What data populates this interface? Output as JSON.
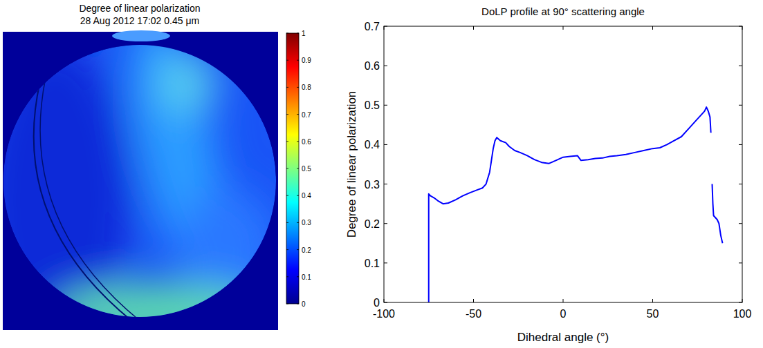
{
  "chart_data": [
    {
      "type": "image",
      "title": "Degree of linear polarization",
      "subtitle": "28 Aug 2012  17:02  0.45 μm",
      "colorbar_range": [
        0,
        1
      ],
      "colorbar_ticks": [
        0,
        0.1,
        0.2,
        0.3,
        0.4,
        0.5,
        0.6,
        0.7,
        0.8,
        0.9,
        1
      ]
    },
    {
      "type": "line",
      "title": "DoLP profile at 90° scattering angle",
      "x_label": "Dihedral angle (°)",
      "y_label": "Degree of linear polarization",
      "color": "#0000ff",
      "x": [
        -75,
        -75,
        -74,
        -72,
        -70,
        -67,
        -64,
        -60,
        -56,
        -52,
        -48,
        -45,
        -43,
        -41,
        -40,
        -39,
        -38,
        -37,
        -35,
        -32,
        -30,
        -27,
        -24,
        -20,
        -16,
        -12,
        -8,
        -4,
        0,
        4,
        8,
        10,
        14,
        18,
        22,
        26,
        30,
        35,
        40,
        45,
        50,
        54,
        58,
        62,
        66,
        70,
        74,
        77,
        79,
        80,
        81,
        82,
        82.5,
        82.8,
        83.2,
        83.6,
        84,
        86,
        87,
        88,
        89
      ],
      "values": [
        0,
        0.275,
        0.27,
        0.265,
        0.258,
        0.25,
        0.252,
        0.26,
        0.27,
        0.278,
        0.285,
        0.29,
        0.3,
        0.33,
        0.36,
        0.39,
        0.41,
        0.418,
        0.41,
        0.405,
        0.395,
        0.385,
        0.38,
        0.372,
        0.362,
        0.355,
        0.352,
        0.36,
        0.368,
        0.37,
        0.372,
        0.36,
        0.362,
        0.365,
        0.366,
        0.37,
        0.372,
        0.375,
        0.38,
        0.385,
        0.39,
        0.392,
        0.4,
        0.41,
        0.42,
        0.44,
        0.46,
        0.475,
        0.485,
        0.495,
        0.485,
        0.47,
        0.43,
        null,
        0.3,
        0.25,
        0.22,
        0.21,
        0.2,
        0.17,
        0.15
      ],
      "xlim": [
        -100,
        100
      ],
      "xticks": [
        -100,
        -50,
        0,
        50,
        100
      ],
      "ylim": [
        0,
        0.7
      ],
      "yticks": [
        0,
        0.1,
        0.2,
        0.3,
        0.4,
        0.5,
        0.6,
        0.7
      ]
    }
  ]
}
